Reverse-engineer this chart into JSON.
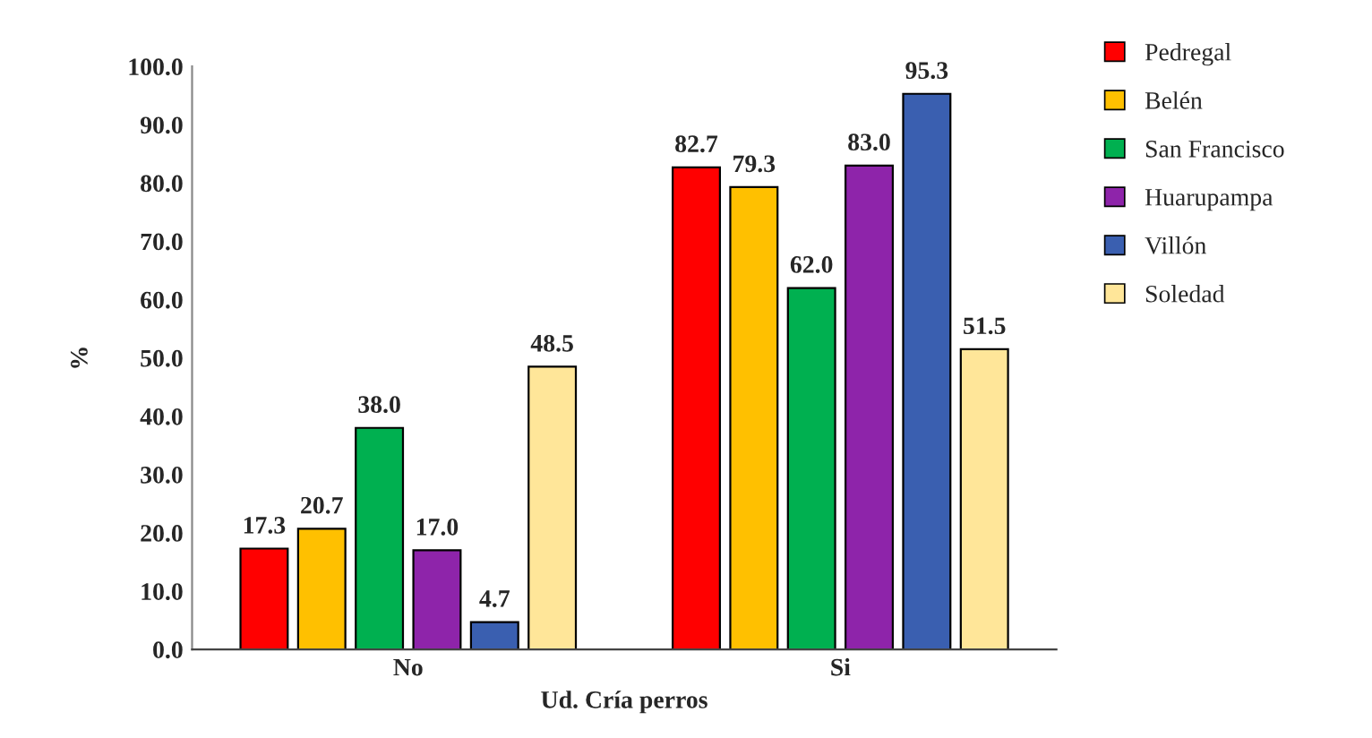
{
  "chart_data": {
    "type": "bar",
    "xlabel": "Ud. Cría perros",
    "ylabel": "%",
    "categories": [
      "No",
      "Si"
    ],
    "series": [
      {
        "name": "Pedregal",
        "color": "#ff0000",
        "values": [
          17.3,
          82.7
        ],
        "value_labels": [
          "17.3",
          "82.7"
        ]
      },
      {
        "name": "Belén",
        "color": "#ffc000",
        "values": [
          20.7,
          79.3
        ],
        "value_labels": [
          "20.7",
          "79.3"
        ]
      },
      {
        "name": "San Francisco",
        "color": "#00b050",
        "values": [
          38.0,
          62.0
        ],
        "value_labels": [
          "38.0",
          "62.0"
        ]
      },
      {
        "name": "Huarupampa",
        "color": "#8e24aa",
        "values": [
          17.0,
          83.0
        ],
        "value_labels": [
          "17.0",
          "83.0"
        ]
      },
      {
        "name": "Villón",
        "color": "#3a5fb0",
        "values": [
          4.7,
          95.3
        ],
        "value_labels": [
          "4.7",
          "95.3"
        ]
      },
      {
        "name": "Soledad",
        "color": "#ffe699",
        "values": [
          48.5,
          51.5
        ],
        "value_labels": [
          "48.5",
          "51.5"
        ]
      }
    ],
    "ylim": [
      0,
      100
    ],
    "yticks": [
      {
        "value": 0,
        "label": "0.0"
      },
      {
        "value": 10,
        "label": "10.0"
      },
      {
        "value": 20,
        "label": "20.0"
      },
      {
        "value": 30,
        "label": "30.0"
      },
      {
        "value": 40,
        "label": "40.0"
      },
      {
        "value": 50,
        "label": "50.0"
      },
      {
        "value": 60,
        "label": "60.0"
      },
      {
        "value": 70,
        "label": "70.0"
      },
      {
        "value": 80,
        "label": "80.0"
      },
      {
        "value": 90,
        "label": "90.0"
      },
      {
        "value": 100,
        "label": "100.0"
      }
    ],
    "grid": false,
    "legend": "top right"
  }
}
